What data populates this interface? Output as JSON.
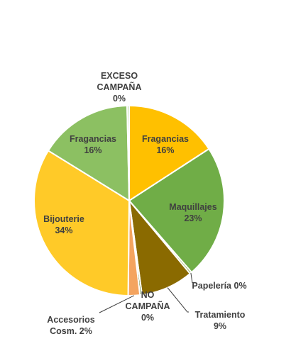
{
  "chart_data": {
    "type": "pie",
    "title": "",
    "slices": [
      {
        "label": "Fragancias",
        "value": 16,
        "value_label": "16%",
        "color": "#ffc000"
      },
      {
        "label": "Maquillajes",
        "value": 23,
        "value_label": "23%",
        "color": "#70ad47"
      },
      {
        "label": "Papelería",
        "value": 0,
        "value_label": "0%",
        "color": "#7f9f3a"
      },
      {
        "label": "Tratamiento",
        "value": 9,
        "value_label": "9%",
        "color": "#8a6a00"
      },
      {
        "label": "NO CAMPAÑA",
        "value": 0,
        "value_label": "0%",
        "color": "#5b7b2c"
      },
      {
        "label": "Accesorios Cosm.",
        "value": 2,
        "value_label": "2%",
        "color": "#f4a460"
      },
      {
        "label": "Bijouterie",
        "value": 34,
        "value_label": "34%",
        "color": "#ffca28"
      },
      {
        "label": "Fragancias",
        "value": 16,
        "value_label": "16%",
        "color": "#8cc062"
      },
      {
        "label": "EXCESO CAMPAÑA",
        "value": 0,
        "value_label": "0%",
        "color": "#a9d18e"
      }
    ],
    "legend": "none",
    "data_labels": "category-and-percent"
  }
}
